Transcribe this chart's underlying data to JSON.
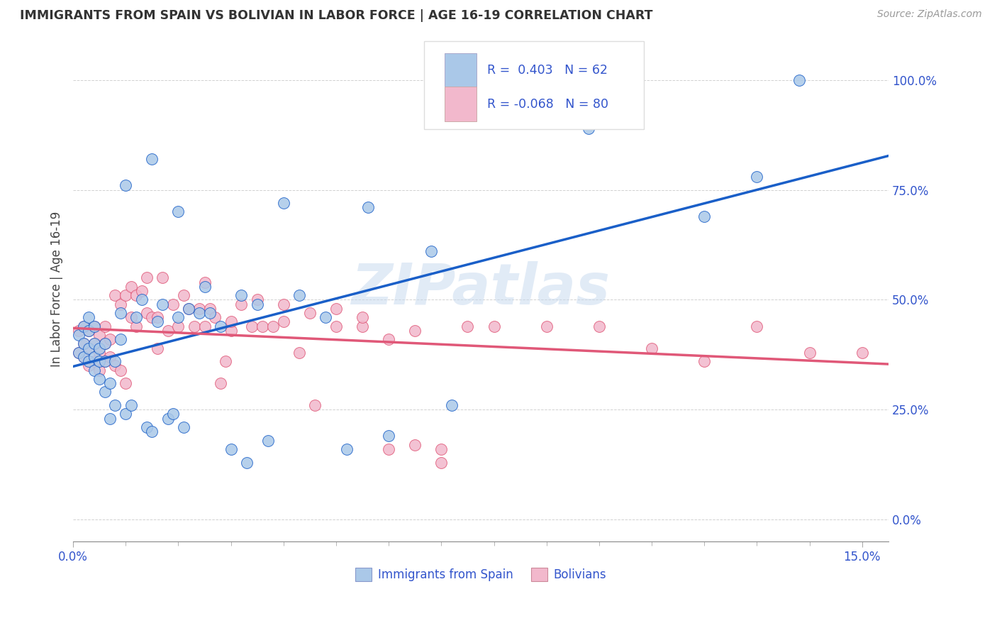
{
  "title": "IMMIGRANTS FROM SPAIN VS BOLIVIAN IN LABOR FORCE | AGE 16-19 CORRELATION CHART",
  "source": "Source: ZipAtlas.com",
  "ylabel_label": "In Labor Force | Age 16-19",
  "watermark": "ZIPatlas",
  "color_spain": "#aac8e8",
  "color_bolivia": "#f2b8cc",
  "color_spain_line": "#1a5fc8",
  "color_bolivia_line": "#e05878",
  "color_legend_r": "#3355cc",
  "color_ytick": "#3355cc",
  "color_xtick": "#3355cc",
  "xlim": [
    0.0,
    0.155
  ],
  "ylim": [
    -0.05,
    1.1
  ],
  "xtick_major_labels": {
    "0.0": "0.0%",
    "0.15": "15.0%"
  },
  "ytick_vals": [
    0.0,
    0.25,
    0.5,
    0.75,
    1.0
  ],
  "ytick_labels": [
    "0.0%",
    "25.0%",
    "50.0%",
    "75.0%",
    "100.0%"
  ],
  "spain_x": [
    0.001,
    0.001,
    0.002,
    0.002,
    0.002,
    0.003,
    0.003,
    0.003,
    0.003,
    0.004,
    0.004,
    0.004,
    0.004,
    0.005,
    0.005,
    0.005,
    0.006,
    0.006,
    0.006,
    0.007,
    0.007,
    0.008,
    0.008,
    0.009,
    0.009,
    0.01,
    0.011,
    0.012,
    0.013,
    0.014,
    0.015,
    0.016,
    0.017,
    0.018,
    0.019,
    0.02,
    0.021,
    0.022,
    0.024,
    0.025,
    0.026,
    0.028,
    0.03,
    0.032,
    0.033,
    0.035,
    0.037,
    0.04,
    0.043,
    0.048,
    0.052,
    0.056,
    0.06,
    0.068,
    0.072,
    0.098,
    0.12,
    0.13,
    0.138,
    0.01,
    0.015,
    0.02
  ],
  "spain_y": [
    0.38,
    0.42,
    0.37,
    0.4,
    0.44,
    0.36,
    0.39,
    0.43,
    0.46,
    0.34,
    0.37,
    0.4,
    0.44,
    0.32,
    0.36,
    0.39,
    0.29,
    0.36,
    0.4,
    0.23,
    0.31,
    0.26,
    0.36,
    0.41,
    0.47,
    0.24,
    0.26,
    0.46,
    0.5,
    0.21,
    0.2,
    0.45,
    0.49,
    0.23,
    0.24,
    0.46,
    0.21,
    0.48,
    0.47,
    0.53,
    0.47,
    0.44,
    0.16,
    0.51,
    0.13,
    0.49,
    0.18,
    0.72,
    0.51,
    0.46,
    0.16,
    0.71,
    0.19,
    0.61,
    0.26,
    0.89,
    0.69,
    0.78,
    1.0,
    0.76,
    0.82,
    0.7
  ],
  "bolivia_x": [
    0.001,
    0.001,
    0.002,
    0.002,
    0.002,
    0.003,
    0.003,
    0.003,
    0.004,
    0.004,
    0.004,
    0.005,
    0.005,
    0.005,
    0.006,
    0.006,
    0.006,
    0.007,
    0.007,
    0.008,
    0.008,
    0.009,
    0.009,
    0.01,
    0.01,
    0.011,
    0.011,
    0.012,
    0.012,
    0.013,
    0.014,
    0.014,
    0.015,
    0.016,
    0.016,
    0.017,
    0.018,
    0.019,
    0.02,
    0.021,
    0.022,
    0.023,
    0.024,
    0.025,
    0.026,
    0.027,
    0.028,
    0.029,
    0.03,
    0.032,
    0.034,
    0.036,
    0.038,
    0.04,
    0.043,
    0.046,
    0.05,
    0.055,
    0.06,
    0.065,
    0.07,
    0.075,
    0.08,
    0.09,
    0.1,
    0.11,
    0.12,
    0.13,
    0.14,
    0.15,
    0.025,
    0.03,
    0.035,
    0.04,
    0.045,
    0.05,
    0.055,
    0.06,
    0.065,
    0.07
  ],
  "bolivia_y": [
    0.38,
    0.43,
    0.37,
    0.4,
    0.44,
    0.35,
    0.39,
    0.43,
    0.36,
    0.4,
    0.44,
    0.34,
    0.38,
    0.42,
    0.36,
    0.4,
    0.44,
    0.37,
    0.41,
    0.35,
    0.51,
    0.34,
    0.49,
    0.31,
    0.51,
    0.53,
    0.46,
    0.51,
    0.44,
    0.52,
    0.47,
    0.55,
    0.46,
    0.39,
    0.46,
    0.55,
    0.43,
    0.49,
    0.44,
    0.51,
    0.48,
    0.44,
    0.48,
    0.44,
    0.48,
    0.46,
    0.31,
    0.36,
    0.43,
    0.49,
    0.44,
    0.44,
    0.44,
    0.49,
    0.38,
    0.26,
    0.44,
    0.44,
    0.16,
    0.43,
    0.13,
    0.44,
    0.44,
    0.44,
    0.44,
    0.39,
    0.36,
    0.44,
    0.38,
    0.38,
    0.54,
    0.45,
    0.5,
    0.45,
    0.47,
    0.48,
    0.46,
    0.41,
    0.17,
    0.16
  ]
}
